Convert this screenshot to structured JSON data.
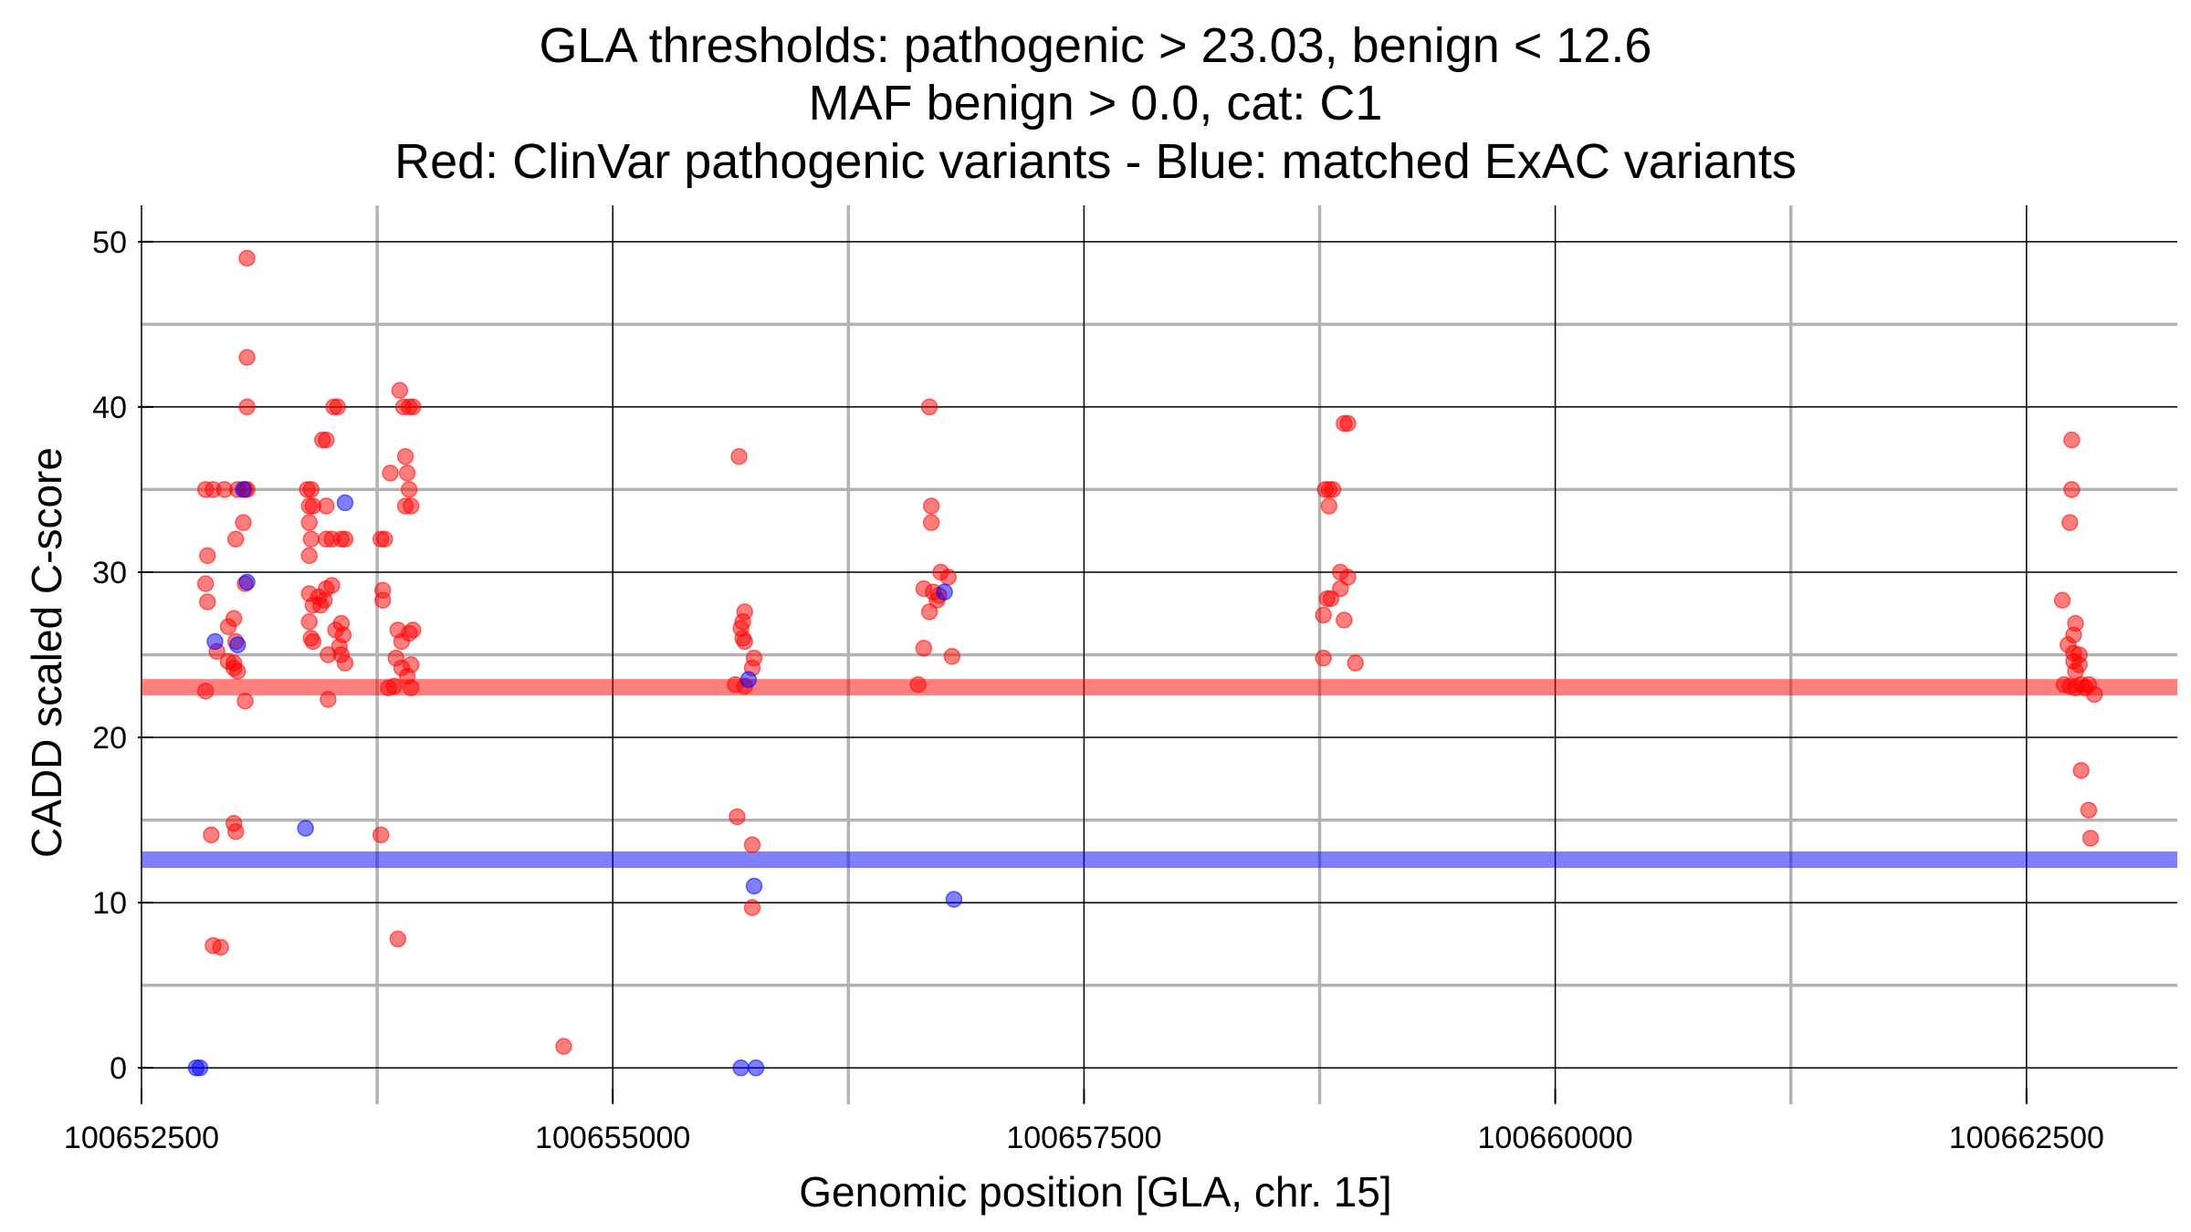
{
  "chart_data": {
    "type": "scatter",
    "title_lines": [
      "GLA thresholds: pathogenic > 23.03, benign < 12.6",
      "MAF benign > 0.0, cat: C1",
      "Red: ClinVar pathogenic variants - Blue: matched ExAC variants"
    ],
    "xlabel": "Genomic position [GLA, chr. 15]",
    "ylabel": "CADD scaled C-score",
    "xlim": [
      100652500,
      100663300
    ],
    "ylim": [
      -2.2,
      52.2
    ],
    "x_ticks": [
      100652500,
      100655000,
      100657500,
      100660000,
      100662500
    ],
    "x_tick_labels": [
      "100652500",
      "100655000",
      "100657500",
      "100660000",
      "100662500"
    ],
    "y_ticks": [
      0,
      10,
      20,
      30,
      40,
      50
    ],
    "y_tick_labels": [
      "0",
      "10",
      "20",
      "30",
      "40",
      "50"
    ],
    "x_minor_gridlines": [
      100653750,
      100656250,
      100658750,
      100661250
    ],
    "y_minor_gridlines": [
      5,
      15,
      25,
      35,
      45
    ],
    "grid": true,
    "colors": {
      "pathogenic": "#ff0000",
      "benign": "#0000ff",
      "major_grid": "#000000",
      "minor_grid": "#b3b3b3"
    },
    "thresholds": [
      {
        "value": 23.03,
        "color": "#ff0000"
      },
      {
        "value": 12.6,
        "color": "#0000ff"
      }
    ],
    "series": [
      {
        "key": "pathogenic",
        "color": "#ff0000",
        "points": [
          [
            100652840,
            35
          ],
          [
            100652880,
            35
          ],
          [
            100652940,
            35
          ],
          [
            100653010,
            35
          ],
          [
            100653050,
            35
          ],
          [
            100653060,
            35
          ],
          [
            100652850,
            31
          ],
          [
            100652840,
            29.3
          ],
          [
            100652850,
            28.2
          ],
          [
            100653040,
            33
          ],
          [
            100653000,
            32
          ],
          [
            100653050,
            29.3
          ],
          [
            100652990,
            27.2
          ],
          [
            100652960,
            26.7
          ],
          [
            100652900,
            25.2
          ],
          [
            100652960,
            24.6
          ],
          [
            100652990,
            24.2
          ],
          [
            100653010,
            24
          ],
          [
            100652990,
            24.5
          ],
          [
            100653000,
            25.8
          ],
          [
            100652840,
            22.8
          ],
          [
            100653050,
            22.2
          ],
          [
            100653060,
            49
          ],
          [
            100653060,
            43
          ],
          [
            100653060,
            40
          ],
          [
            100652870,
            14.1
          ],
          [
            100652990,
            14.8
          ],
          [
            100653000,
            14.3
          ],
          [
            100652880,
            7.4
          ],
          [
            100652920,
            7.3
          ],
          [
            100653380,
            35
          ],
          [
            100653400,
            35
          ],
          [
            100653390,
            34
          ],
          [
            100653410,
            34
          ],
          [
            100653390,
            33
          ],
          [
            100653400,
            32
          ],
          [
            100653390,
            31
          ],
          [
            100653390,
            28.7
          ],
          [
            100653440,
            28.5
          ],
          [
            100653410,
            28
          ],
          [
            100653450,
            28
          ],
          [
            100653390,
            27
          ],
          [
            100653400,
            26
          ],
          [
            100653410,
            25.8
          ],
          [
            100653460,
            38
          ],
          [
            100653480,
            38
          ],
          [
            100653480,
            34
          ],
          [
            100653520,
            40
          ],
          [
            100653540,
            40
          ],
          [
            100653480,
            32
          ],
          [
            100653510,
            32
          ],
          [
            100653560,
            32
          ],
          [
            100653580,
            32
          ],
          [
            100653480,
            29
          ],
          [
            100653510,
            29.2
          ],
          [
            100653470,
            28.3
          ],
          [
            100653560,
            26.9
          ],
          [
            100653530,
            26.5
          ],
          [
            100653570,
            26.2
          ],
          [
            100653550,
            25.5
          ],
          [
            100653560,
            25
          ],
          [
            100653580,
            24.5
          ],
          [
            100653490,
            25
          ],
          [
            100653490,
            22.3
          ],
          [
            100653770,
            32
          ],
          [
            100653790,
            32
          ],
          [
            100653780,
            28.9
          ],
          [
            100653780,
            28.3
          ],
          [
            100653820,
            36
          ],
          [
            100653870,
            41
          ],
          [
            100653890,
            40
          ],
          [
            100653920,
            40
          ],
          [
            100653940,
            40
          ],
          [
            100653900,
            37
          ],
          [
            100653910,
            36
          ],
          [
            100653920,
            35
          ],
          [
            100653900,
            34
          ],
          [
            100653930,
            34
          ],
          [
            100653860,
            26.5
          ],
          [
            100653880,
            25.8
          ],
          [
            100653850,
            24.8
          ],
          [
            100653880,
            24.2
          ],
          [
            100653920,
            26.3
          ],
          [
            100653940,
            26.5
          ],
          [
            100653930,
            24.4
          ],
          [
            100653910,
            23.7
          ],
          [
            100653810,
            23
          ],
          [
            100653840,
            23.1
          ],
          [
            100653930,
            23
          ],
          [
            100653770,
            14.1
          ],
          [
            100653860,
            7.8
          ],
          [
            100654740,
            1.3
          ],
          [
            100655670,
            37
          ],
          [
            100655700,
            27.6
          ],
          [
            100655690,
            27
          ],
          [
            100655680,
            26.6
          ],
          [
            100655690,
            26
          ],
          [
            100655700,
            25.8
          ],
          [
            100655750,
            24.8
          ],
          [
            100655740,
            24.2
          ],
          [
            100655650,
            23.2
          ],
          [
            100655700,
            23.1
          ],
          [
            100655660,
            15.2
          ],
          [
            100655740,
            13.5
          ],
          [
            100655740,
            9.7
          ],
          [
            100656680,
            40
          ],
          [
            100656690,
            34
          ],
          [
            100656690,
            33
          ],
          [
            100656740,
            30
          ],
          [
            100656780,
            29.7
          ],
          [
            100656650,
            29
          ],
          [
            100656700,
            28.8
          ],
          [
            100656730,
            28.6
          ],
          [
            100656720,
            28.3
          ],
          [
            100656680,
            27.6
          ],
          [
            100656650,
            25.4
          ],
          [
            100656800,
            24.9
          ],
          [
            100656620,
            23.2
          ],
          [
            100658780,
            35
          ],
          [
            100658800,
            35
          ],
          [
            100658820,
            35
          ],
          [
            100658800,
            34
          ],
          [
            100658880,
            39
          ],
          [
            100658900,
            39
          ],
          [
            100658860,
            30
          ],
          [
            100658900,
            29.7
          ],
          [
            100658860,
            29
          ],
          [
            100658790,
            28.4
          ],
          [
            100658810,
            28.4
          ],
          [
            100658770,
            27.4
          ],
          [
            100658880,
            27.1
          ],
          [
            100658770,
            24.8
          ],
          [
            100658940,
            24.5
          ],
          [
            100662740,
            38
          ],
          [
            100662740,
            35
          ],
          [
            100662730,
            33
          ],
          [
            100662690,
            28.3
          ],
          [
            100662760,
            26.9
          ],
          [
            100662750,
            26.2
          ],
          [
            100662720,
            25.6
          ],
          [
            100662750,
            25.1
          ],
          [
            100662780,
            25
          ],
          [
            100662750,
            24.6
          ],
          [
            100662780,
            24.4
          ],
          [
            100662760,
            24
          ],
          [
            100662700,
            23.2
          ],
          [
            100662730,
            23.1
          ],
          [
            100662790,
            23.2
          ],
          [
            100662760,
            23
          ],
          [
            100662830,
            23.2
          ],
          [
            100662810,
            23
          ],
          [
            100662860,
            22.6
          ],
          [
            100662790,
            18
          ],
          [
            100662830,
            15.6
          ],
          [
            100662840,
            13.9
          ]
        ]
      },
      {
        "key": "benign",
        "color": "#0000ff",
        "points": [
          [
            100652790,
            0
          ],
          [
            100652810,
            0
          ],
          [
            100653040,
            35
          ],
          [
            100652890,
            25.8
          ],
          [
            100653010,
            25.6
          ],
          [
            100653060,
            29.4
          ],
          [
            100653580,
            34.2
          ],
          [
            100653370,
            14.5
          ],
          [
            100655680,
            0
          ],
          [
            100655760,
            0
          ],
          [
            100655720,
            23.5
          ],
          [
            100655750,
            11
          ],
          [
            100656760,
            28.8
          ],
          [
            100656810,
            10.2
          ]
        ]
      }
    ]
  }
}
